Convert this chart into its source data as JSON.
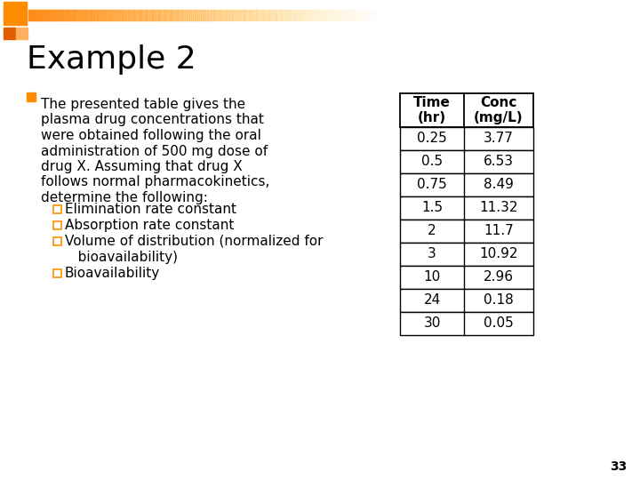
{
  "title": "Example 2",
  "bullet_square_color": "#FF8C00",
  "sub_bullet_color": "#FF8C00",
  "main_text_lines": [
    "The presented table gives the",
    "plasma drug concentrations that",
    "were obtained following the oral",
    "administration of 500 mg dose of",
    "drug X. Assuming that drug X",
    "follows normal pharmacokinetics,",
    "determine the following:"
  ],
  "sub_bullets": [
    "Elimination rate constant",
    "Absorption rate constant",
    "Volume of distribution (normalized for",
    "bioavailability)",
    "Bioavailability"
  ],
  "sub_bullet_flags": [
    true,
    true,
    true,
    false,
    true
  ],
  "table_headers": [
    "Time\n(hr)",
    "Conc\n(mg/L)"
  ],
  "table_data": [
    [
      "0.25",
      "3.77"
    ],
    [
      "0.5",
      "6.53"
    ],
    [
      "0.75",
      "8.49"
    ],
    [
      "1.5",
      "11.32"
    ],
    [
      "2",
      "11.7"
    ],
    [
      "3",
      "10.92"
    ],
    [
      "10",
      "2.96"
    ],
    [
      "24",
      "0.18"
    ],
    [
      "30",
      "0.05"
    ]
  ],
  "page_number": "33",
  "text_color": "#000000",
  "title_fontsize": 26,
  "body_fontsize": 11.0,
  "sub_fontsize": 11.0,
  "table_fontsize": 11.0,
  "slide_bg": "#FFFFFF",
  "header_bar_color": "#FFA030",
  "sq1_color": "#FF8C00",
  "sq2_color": "#E06000",
  "sq3_color": "#FFB060"
}
